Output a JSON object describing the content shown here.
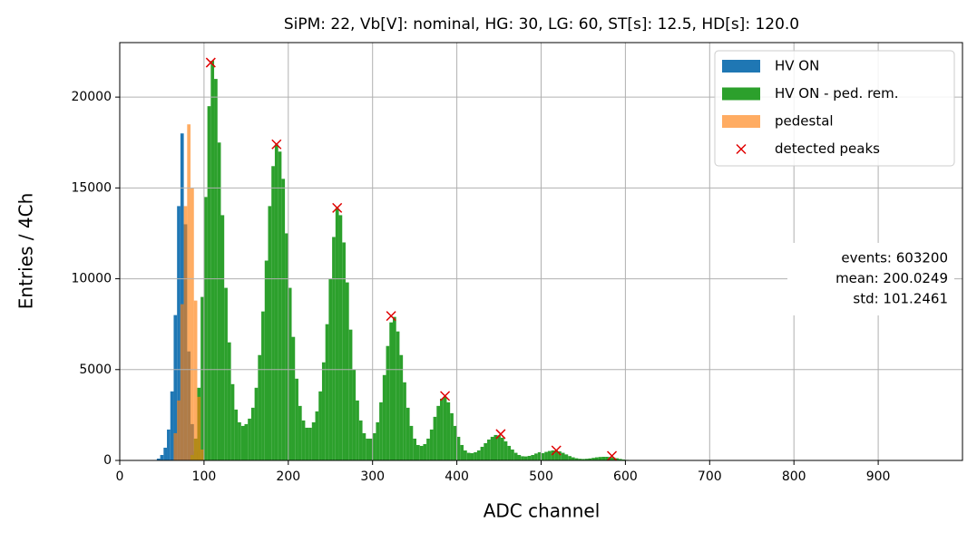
{
  "chart_data": {
    "type": "histogram",
    "title": "SiPM: 22, Vb[V]: nominal, HG: 30, LG: 60, ST[s]: 12.5, HD[s]: 120.0",
    "xlabel": "ADC channel",
    "ylabel": "Entries / 4Ch",
    "xlim": [
      0,
      1000
    ],
    "ylim": [
      0,
      23000
    ],
    "xticks": [
      0,
      100,
      200,
      300,
      400,
      500,
      600,
      700,
      800,
      900
    ],
    "yticks": [
      0,
      5000,
      10000,
      15000,
      20000
    ],
    "grid": true,
    "legend": "upper right",
    "series": [
      {
        "name": "HV ON",
        "color": "#1f77b4",
        "bins": [
          44,
          48,
          52,
          56,
          60,
          64,
          68,
          72,
          76,
          80,
          84,
          88,
          92,
          96,
          100
        ],
        "values": [
          100,
          300,
          700,
          1700,
          3800,
          8000,
          14000,
          18000,
          13000,
          6000,
          2000,
          500,
          100,
          30
        ]
      },
      {
        "name": "HV ON - ped. rem.",
        "color": "#2ca02c",
        "bins": [
          84,
          88,
          92,
          96,
          100,
          104,
          108,
          112,
          116,
          120,
          124,
          128,
          132,
          136,
          140,
          144,
          148,
          152,
          156,
          160,
          164,
          168,
          172,
          176,
          180,
          184,
          188,
          192,
          196,
          200,
          204,
          208,
          212,
          216,
          220,
          224,
          228,
          232,
          236,
          240,
          244,
          248,
          252,
          256,
          260,
          264,
          268,
          272,
          276,
          280,
          284,
          288,
          292,
          296,
          300,
          304,
          308,
          312,
          316,
          320,
          324,
          328,
          332,
          336,
          340,
          344,
          348,
          352,
          356,
          360,
          364,
          368,
          372,
          376,
          380,
          384,
          388,
          392,
          396,
          400,
          404,
          408,
          412,
          416,
          420,
          424,
          428,
          432,
          436,
          440,
          444,
          448,
          452,
          456,
          460,
          464,
          468,
          472,
          476,
          480,
          484,
          488,
          492,
          496,
          500,
          504,
          508,
          512,
          516,
          520,
          524,
          528,
          532,
          536,
          540,
          544,
          548,
          552,
          556,
          560,
          564,
          568,
          572,
          576,
          580,
          584,
          588,
          592,
          596,
          600,
          604,
          608,
          612
        ],
        "values": [
          300,
          1200,
          4000,
          9000,
          14500,
          19500,
          22000,
          21000,
          17500,
          13500,
          9500,
          6500,
          4200,
          2800,
          2100,
          1900,
          2000,
          2300,
          2900,
          4000,
          5800,
          8200,
          11000,
          14000,
          16200,
          17400,
          17000,
          15500,
          12500,
          9500,
          6800,
          4500,
          3000,
          2200,
          1800,
          1800,
          2100,
          2700,
          3800,
          5400,
          7500,
          10000,
          12300,
          13900,
          13500,
          12000,
          9800,
          7200,
          5000,
          3300,
          2200,
          1500,
          1200,
          1200,
          1500,
          2100,
          3200,
          4700,
          6300,
          7600,
          7900,
          7100,
          5800,
          4300,
          2900,
          1900,
          1200,
          850,
          800,
          900,
          1200,
          1700,
          2400,
          3000,
          3400,
          3500,
          3200,
          2600,
          1900,
          1300,
          850,
          550,
          420,
          400,
          450,
          550,
          750,
          950,
          1150,
          1300,
          1400,
          1380,
          1250,
          1050,
          800,
          600,
          420,
          300,
          230,
          220,
          250,
          300,
          380,
          450,
          400,
          470,
          520,
          550,
          550,
          500,
          420,
          330,
          240,
          170,
          120,
          90,
          80,
          90,
          110,
          140,
          170,
          190,
          200,
          200,
          190,
          160,
          120,
          80,
          50,
          30,
          15,
          5
        ]
      },
      {
        "name": "pedestal",
        "color": "#ff7f0e",
        "opacity": 0.65,
        "bins": [
          64,
          68,
          72,
          76,
          80,
          84,
          88,
          92,
          96,
          100
        ],
        "values": [
          1500,
          3300,
          8600,
          14000,
          18500,
          15000,
          8800,
          3500,
          600
        ]
      },
      {
        "name": "detected peaks",
        "color": "#e00000",
        "marker": "x",
        "x": [
          108,
          186,
          258,
          322,
          386,
          452,
          518,
          584
        ],
        "values": [
          21900,
          17400,
          13900,
          7950,
          3550,
          1450,
          550,
          250
        ]
      }
    ],
    "annotations": [
      "events: 603200",
      "mean: 200.0249",
      "std: 101.2461"
    ]
  }
}
